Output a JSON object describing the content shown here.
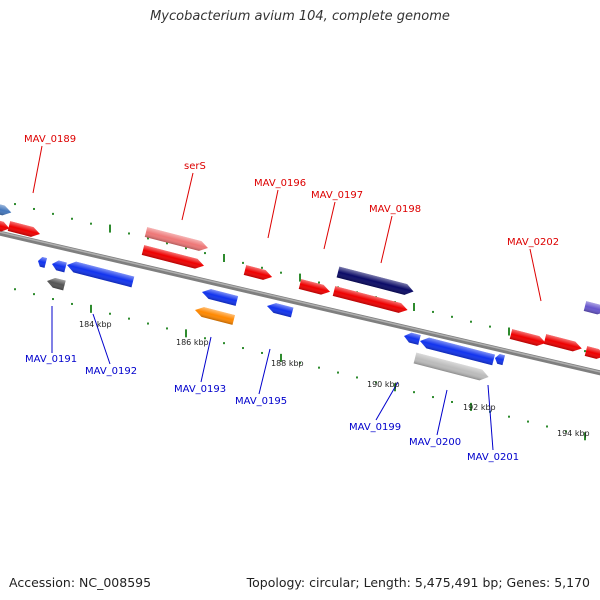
{
  "title": "Mycobacterium avium 104, complete genome",
  "footer": {
    "accession": "Accession: NC_008595",
    "summary": "Topology: circular; Length: 5,475,491 bp; Genes: 5,170"
  },
  "colors": {
    "backbone": "#7f7f7f",
    "tick": "#2e8b2e",
    "forward_label": "#dd0000",
    "reverse_label": "#0000cc",
    "kbp_label": "#222222"
  },
  "kbp_labels": [
    "184 kbp",
    "186 kbp",
    "188 kbp",
    "190 kbp",
    "192 kbp",
    "194 kbp"
  ],
  "forward_genes": [
    {
      "name": "MAV_0189",
      "color": "#ee0000"
    },
    {
      "name": "serS",
      "color": "#ee7777"
    },
    {
      "name": "MAV_0196",
      "color": "#ee0000"
    },
    {
      "name": "MAV_0197",
      "color": "#ee0000"
    },
    {
      "name": "MAV_0198",
      "color": "#ee0000"
    },
    {
      "name": "MAV_0202",
      "color": "#ee0000"
    }
  ],
  "reverse_genes": [
    {
      "name": "MAV_0191",
      "color": "#555555"
    },
    {
      "name": "MAV_0192",
      "color": "#1133ee"
    },
    {
      "name": "MAV_0193",
      "color": "#ff8800"
    },
    {
      "name": "MAV_0195",
      "color": "#1133ee"
    },
    {
      "name": "MAV_0199",
      "color": "#1133ee"
    },
    {
      "name": "MAV_0200",
      "color": "#1133ee"
    },
    {
      "name": "MAV_0201",
      "color": "#bbbbbb"
    }
  ]
}
